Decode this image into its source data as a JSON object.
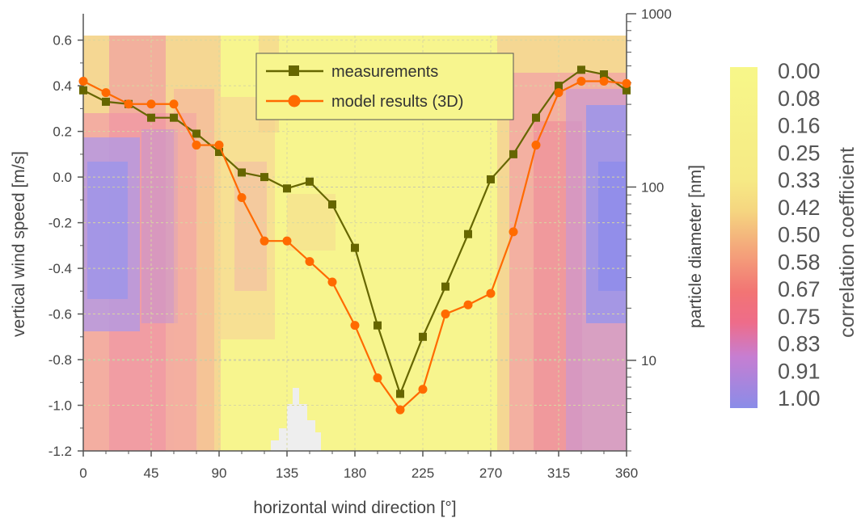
{
  "chart_data": {
    "type": "line",
    "xlabel": "horizontal wind direction [°]",
    "ylabel": "vertical wind speed [m/s]",
    "y2label": "particle diameter [nm]",
    "xlim": [
      0,
      360
    ],
    "ylim": [
      -1.2,
      0.62
    ],
    "y2lim": [
      3,
      1000
    ],
    "y2scale": "log",
    "x_ticks": [
      "0",
      "45",
      "90",
      "135",
      "180",
      "225",
      "270",
      "315",
      "360"
    ],
    "y_ticks": [
      "0.6",
      "0.4",
      "0.2",
      "0.0",
      "-0.2",
      "-0.4",
      "-0.6",
      "-0.8",
      "-1.0",
      "-1.2"
    ],
    "y2_ticks": [
      "1000",
      "100",
      "10"
    ],
    "grid": true,
    "legend_position": "top-center",
    "series": [
      {
        "name": "measurements",
        "color": "#666600",
        "marker": "square",
        "x": [
          0,
          15,
          30,
          45,
          60,
          75,
          90,
          105,
          120,
          135,
          150,
          165,
          180,
          195,
          210,
          225,
          240,
          255,
          270,
          285,
          300,
          315,
          330,
          345,
          360
        ],
        "y": [
          0.38,
          0.33,
          0.32,
          0.26,
          0.26,
          0.19,
          0.11,
          0.02,
          0.0,
          -0.05,
          -0.02,
          -0.12,
          -0.31,
          -0.65,
          -0.95,
          -0.7,
          -0.48,
          -0.25,
          -0.01,
          0.1,
          0.26,
          0.4,
          0.47,
          0.45,
          0.38
        ]
      },
      {
        "name": "model results (3D)",
        "color": "#ff6a00",
        "marker": "circle",
        "x": [
          0,
          15,
          30,
          45,
          60,
          75,
          90,
          105,
          120,
          135,
          150,
          165,
          180,
          195,
          210,
          225,
          240,
          255,
          270,
          285,
          300,
          315,
          330,
          345,
          360
        ],
        "y": [
          0.42,
          0.37,
          0.32,
          0.32,
          0.32,
          0.14,
          0.14,
          -0.09,
          -0.28,
          -0.28,
          -0.37,
          -0.46,
          -0.65,
          -0.88,
          -1.02,
          -0.93,
          -0.6,
          -0.56,
          -0.51,
          -0.24,
          0.14,
          0.37,
          0.42,
          0.42,
          0.41
        ]
      }
    ],
    "colorbar": {
      "title": "correlation coefficient",
      "labels": [
        "0.00",
        "0.08",
        "0.16",
        "0.25",
        "0.33",
        "0.42",
        "0.50",
        "0.58",
        "0.67",
        "0.75",
        "0.83",
        "0.91",
        "1.00"
      ],
      "colors": [
        "#f7f787",
        "#f6e583",
        "#f5c97f",
        "#f4a77b",
        "#f28677",
        "#f06a80",
        "#d07bd0",
        "#a88ee0",
        "#8c8ce8"
      ]
    }
  }
}
